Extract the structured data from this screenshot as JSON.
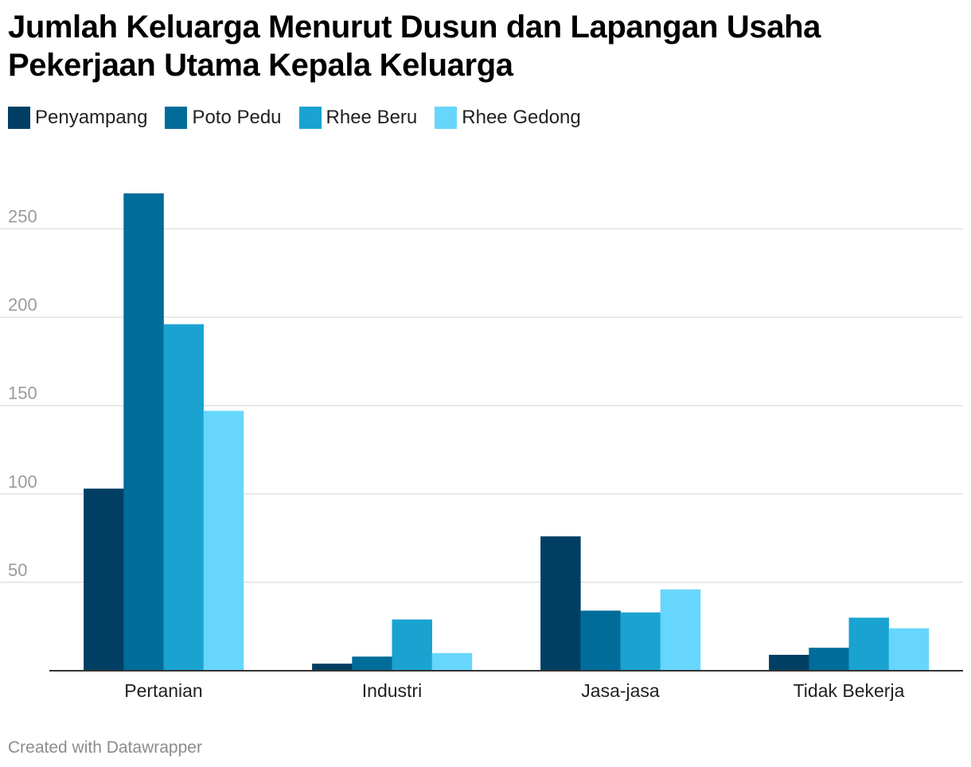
{
  "title": "Jumlah Keluarga Menurut Dusun dan Lapangan Usaha Pekerjaan Utama Kepala Keluarga",
  "footer": "Created with Datawrapper",
  "legend": [
    {
      "label": "Penyampang",
      "color": "#003f63"
    },
    {
      "label": "Poto Pedu",
      "color": "#006c9a"
    },
    {
      "label": "Rhee Beru",
      "color": "#1aa3d0"
    },
    {
      "label": "Rhee Gedong",
      "color": "#66d6fd"
    }
  ],
  "chart_data": {
    "type": "bar",
    "categories": [
      "Pertanian",
      "Industri",
      "Jasa-jasa",
      "Tidak Bekerja"
    ],
    "series": [
      {
        "name": "Penyampang",
        "color": "#003f63",
        "values": [
          103,
          4,
          76,
          9
        ]
      },
      {
        "name": "Poto Pedu",
        "color": "#006c9a",
        "values": [
          270,
          8,
          34,
          13
        ]
      },
      {
        "name": "Rhee Beru",
        "color": "#1aa3d0",
        "values": [
          196,
          29,
          33,
          30
        ]
      },
      {
        "name": "Rhee Gedong",
        "color": "#66d6fd",
        "values": [
          147,
          10,
          46,
          24
        ]
      }
    ],
    "yticks": [
      50,
      100,
      150,
      200,
      250
    ],
    "ylim": [
      0,
      280
    ],
    "grid": true,
    "legend_position": "top-left"
  }
}
